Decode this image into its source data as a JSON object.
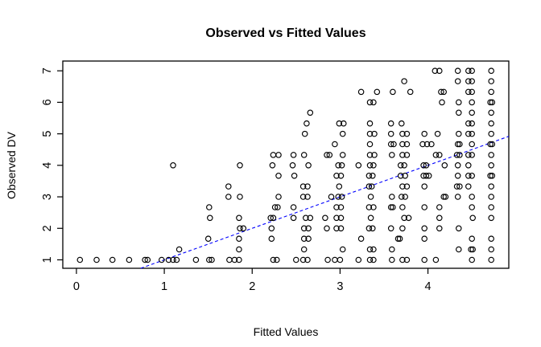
{
  "chart_data": {
    "type": "scatter",
    "title": "Observed vs Fitted Values",
    "xlabel": "Fitted Values",
    "ylabel": "Observed DV",
    "x_ticks": [
      0,
      1,
      2,
      3,
      4
    ],
    "y_ticks": [
      1,
      2,
      3,
      4,
      5,
      6,
      7
    ],
    "xlim": [
      -0.155,
      4.92
    ],
    "ylim": [
      0.732,
      7.31
    ],
    "grid": false,
    "point_style": "open-circle",
    "point_color": "#000000",
    "axis_color": "#000000",
    "reference_line": {
      "style": "dashed",
      "color": "#0000ff",
      "intercept": 0,
      "slope": 1
    },
    "points": [
      [
        0.04,
        1
      ],
      [
        0.23,
        1
      ],
      [
        0.41,
        1
      ],
      [
        0.6,
        1
      ],
      [
        0.78,
        1
      ],
      [
        0.81,
        1
      ],
      [
        0.97,
        1
      ],
      [
        1.05,
        1
      ],
      [
        1.1,
        1
      ],
      [
        1.14,
        1
      ],
      [
        1.36,
        1
      ],
      [
        1.51,
        1
      ],
      [
        1.54,
        1
      ],
      [
        1.74,
        1
      ],
      [
        1.8,
        1
      ],
      [
        1.85,
        1
      ],
      [
        2.24,
        1
      ],
      [
        2.28,
        1
      ],
      [
        2.5,
        1
      ],
      [
        2.58,
        1
      ],
      [
        2.63,
        1
      ],
      [
        2.86,
        1
      ],
      [
        2.94,
        1
      ],
      [
        3.0,
        1
      ],
      [
        3.21,
        1
      ],
      [
        3.34,
        1
      ],
      [
        3.38,
        1
      ],
      [
        3.59,
        1
      ],
      [
        3.71,
        1
      ],
      [
        3.76,
        1
      ],
      [
        3.96,
        1
      ],
      [
        4.09,
        1
      ],
      [
        4.5,
        1
      ],
      [
        4.72,
        1
      ],
      [
        1.17,
        1.33
      ],
      [
        1.85,
        1.33
      ],
      [
        2.59,
        1.33
      ],
      [
        3.03,
        1.33
      ],
      [
        3.34,
        1.33
      ],
      [
        3.38,
        1.33
      ],
      [
        3.59,
        1.33
      ],
      [
        4.35,
        1.33
      ],
      [
        4.49,
        1.33
      ],
      [
        4.51,
        1.33
      ],
      [
        4.72,
        1.33
      ],
      [
        1.5,
        1.67
      ],
      [
        1.85,
        1.67
      ],
      [
        2.22,
        1.67
      ],
      [
        2.59,
        1.67
      ],
      [
        2.64,
        1.67
      ],
      [
        3.24,
        1.67
      ],
      [
        3.66,
        1.67
      ],
      [
        3.68,
        1.67
      ],
      [
        3.96,
        1.67
      ],
      [
        4.5,
        1.67
      ],
      [
        4.72,
        1.67
      ],
      [
        1.86,
        2
      ],
      [
        1.9,
        2
      ],
      [
        2.22,
        2
      ],
      [
        2.59,
        2
      ],
      [
        2.64,
        2
      ],
      [
        2.85,
        2
      ],
      [
        2.96,
        2
      ],
      [
        3.01,
        2
      ],
      [
        3.33,
        2
      ],
      [
        3.37,
        2
      ],
      [
        3.58,
        2
      ],
      [
        3.71,
        2
      ],
      [
        3.96,
        2
      ],
      [
        4.13,
        2
      ],
      [
        4.35,
        2
      ],
      [
        1.52,
        2.33
      ],
      [
        1.85,
        2.33
      ],
      [
        2.21,
        2.33
      ],
      [
        2.24,
        2.33
      ],
      [
        2.47,
        2.33
      ],
      [
        2.61,
        2.33
      ],
      [
        2.66,
        2.33
      ],
      [
        2.83,
        2.33
      ],
      [
        2.96,
        2.33
      ],
      [
        3.01,
        2.33
      ],
      [
        3.35,
        2.33
      ],
      [
        3.73,
        2.33
      ],
      [
        3.78,
        2.33
      ],
      [
        4.13,
        2.33
      ],
      [
        4.51,
        2.33
      ],
      [
        4.72,
        2.33
      ],
      [
        1.51,
        2.67
      ],
      [
        2.26,
        2.67
      ],
      [
        2.29,
        2.67
      ],
      [
        2.47,
        2.67
      ],
      [
        2.96,
        2.67
      ],
      [
        3.01,
        2.67
      ],
      [
        3.33,
        2.67
      ],
      [
        3.38,
        2.67
      ],
      [
        3.58,
        2.67
      ],
      [
        3.6,
        2.67
      ],
      [
        3.71,
        2.67
      ],
      [
        3.96,
        2.67
      ],
      [
        4.13,
        2.67
      ],
      [
        4.5,
        2.67
      ],
      [
        4.72,
        2.67
      ],
      [
        1.73,
        3
      ],
      [
        1.86,
        3
      ],
      [
        2.3,
        3
      ],
      [
        2.58,
        3
      ],
      [
        2.63,
        3
      ],
      [
        2.9,
        3
      ],
      [
        2.98,
        3
      ],
      [
        3.02,
        3
      ],
      [
        3.35,
        3
      ],
      [
        3.59,
        3
      ],
      [
        3.7,
        3
      ],
      [
        3.74,
        3
      ],
      [
        4.18,
        3
      ],
      [
        4.2,
        3
      ],
      [
        4.34,
        3
      ],
      [
        4.5,
        3
      ],
      [
        4.72,
        3
      ],
      [
        1.73,
        3.33
      ],
      [
        2.58,
        3.33
      ],
      [
        2.63,
        3.33
      ],
      [
        2.99,
        3.33
      ],
      [
        3.33,
        3.33
      ],
      [
        3.36,
        3.33
      ],
      [
        3.71,
        3.33
      ],
      [
        3.76,
        3.33
      ],
      [
        3.96,
        3.33
      ],
      [
        4.33,
        3.33
      ],
      [
        4.36,
        3.33
      ],
      [
        4.46,
        3.33
      ],
      [
        4.72,
        3.33
      ],
      [
        2.3,
        3.67
      ],
      [
        2.48,
        3.67
      ],
      [
        2.96,
        3.67
      ],
      [
        3.01,
        3.67
      ],
      [
        3.33,
        3.67
      ],
      [
        3.37,
        3.67
      ],
      [
        3.69,
        3.67
      ],
      [
        3.74,
        3.67
      ],
      [
        3.95,
        3.67
      ],
      [
        3.98,
        3.67
      ],
      [
        4.01,
        3.67
      ],
      [
        4.34,
        3.67
      ],
      [
        4.46,
        3.67
      ],
      [
        4.5,
        3.67
      ],
      [
        4.71,
        3.67
      ],
      [
        4.73,
        3.67
      ],
      [
        1.1,
        4
      ],
      [
        1.86,
        4
      ],
      [
        2.23,
        4
      ],
      [
        2.46,
        4
      ],
      [
        2.64,
        4
      ],
      [
        2.98,
        4
      ],
      [
        3.02,
        4
      ],
      [
        3.21,
        4
      ],
      [
        3.34,
        4
      ],
      [
        3.38,
        4
      ],
      [
        3.69,
        4
      ],
      [
        3.73,
        4
      ],
      [
        3.95,
        4
      ],
      [
        3.98,
        4
      ],
      [
        4.19,
        4
      ],
      [
        4.34,
        4
      ],
      [
        4.46,
        4
      ],
      [
        4.72,
        4
      ],
      [
        2.24,
        4.33
      ],
      [
        2.3,
        4.33
      ],
      [
        2.47,
        4.33
      ],
      [
        2.59,
        4.33
      ],
      [
        2.85,
        4.33
      ],
      [
        2.88,
        4.33
      ],
      [
        3.03,
        4.33
      ],
      [
        3.34,
        4.33
      ],
      [
        3.39,
        4.33
      ],
      [
        3.59,
        4.33
      ],
      [
        3.71,
        4.33
      ],
      [
        3.76,
        4.33
      ],
      [
        4.09,
        4.33
      ],
      [
        4.13,
        4.33
      ],
      [
        4.33,
        4.33
      ],
      [
        4.36,
        4.33
      ],
      [
        4.46,
        4.33
      ],
      [
        4.5,
        4.33
      ],
      [
        4.72,
        4.33
      ],
      [
        2.94,
        4.67
      ],
      [
        3.34,
        4.67
      ],
      [
        3.58,
        4.67
      ],
      [
        3.61,
        4.67
      ],
      [
        3.71,
        4.67
      ],
      [
        3.76,
        4.67
      ],
      [
        3.94,
        4.67
      ],
      [
        3.99,
        4.67
      ],
      [
        4.04,
        4.67
      ],
      [
        4.34,
        4.67
      ],
      [
        4.36,
        4.67
      ],
      [
        4.5,
        4.67
      ],
      [
        4.71,
        4.67
      ],
      [
        4.73,
        4.67
      ],
      [
        2.6,
        5
      ],
      [
        3.03,
        5
      ],
      [
        3.34,
        5
      ],
      [
        3.39,
        5
      ],
      [
        3.58,
        5
      ],
      [
        3.71,
        5
      ],
      [
        3.76,
        5
      ],
      [
        3.96,
        5
      ],
      [
        4.11,
        5
      ],
      [
        4.35,
        5
      ],
      [
        4.46,
        5
      ],
      [
        4.5,
        5
      ],
      [
        4.72,
        5
      ],
      [
        2.62,
        5.33
      ],
      [
        2.99,
        5.33
      ],
      [
        3.04,
        5.33
      ],
      [
        3.34,
        5.33
      ],
      [
        3.58,
        5.33
      ],
      [
        3.7,
        5.33
      ],
      [
        4.46,
        5.33
      ],
      [
        4.5,
        5.33
      ],
      [
        4.72,
        5.33
      ],
      [
        2.66,
        5.67
      ],
      [
        4.35,
        5.67
      ],
      [
        4.5,
        5.67
      ],
      [
        4.72,
        5.67
      ],
      [
        3.34,
        6
      ],
      [
        3.38,
        6
      ],
      [
        4.16,
        6
      ],
      [
        4.35,
        6
      ],
      [
        4.5,
        6
      ],
      [
        4.71,
        6
      ],
      [
        4.73,
        6
      ],
      [
        3.24,
        6.33
      ],
      [
        3.42,
        6.33
      ],
      [
        3.6,
        6.33
      ],
      [
        3.8,
        6.33
      ],
      [
        4.15,
        6.33
      ],
      [
        4.18,
        6.33
      ],
      [
        4.46,
        6.33
      ],
      [
        4.5,
        6.33
      ],
      [
        4.72,
        6.33
      ],
      [
        3.73,
        6.67
      ],
      [
        4.34,
        6.67
      ],
      [
        4.46,
        6.67
      ],
      [
        4.5,
        6.67
      ],
      [
        4.72,
        6.67
      ],
      [
        4.08,
        7
      ],
      [
        4.13,
        7
      ],
      [
        4.34,
        7
      ],
      [
        4.46,
        7
      ],
      [
        4.5,
        7
      ],
      [
        4.72,
        7
      ]
    ]
  }
}
